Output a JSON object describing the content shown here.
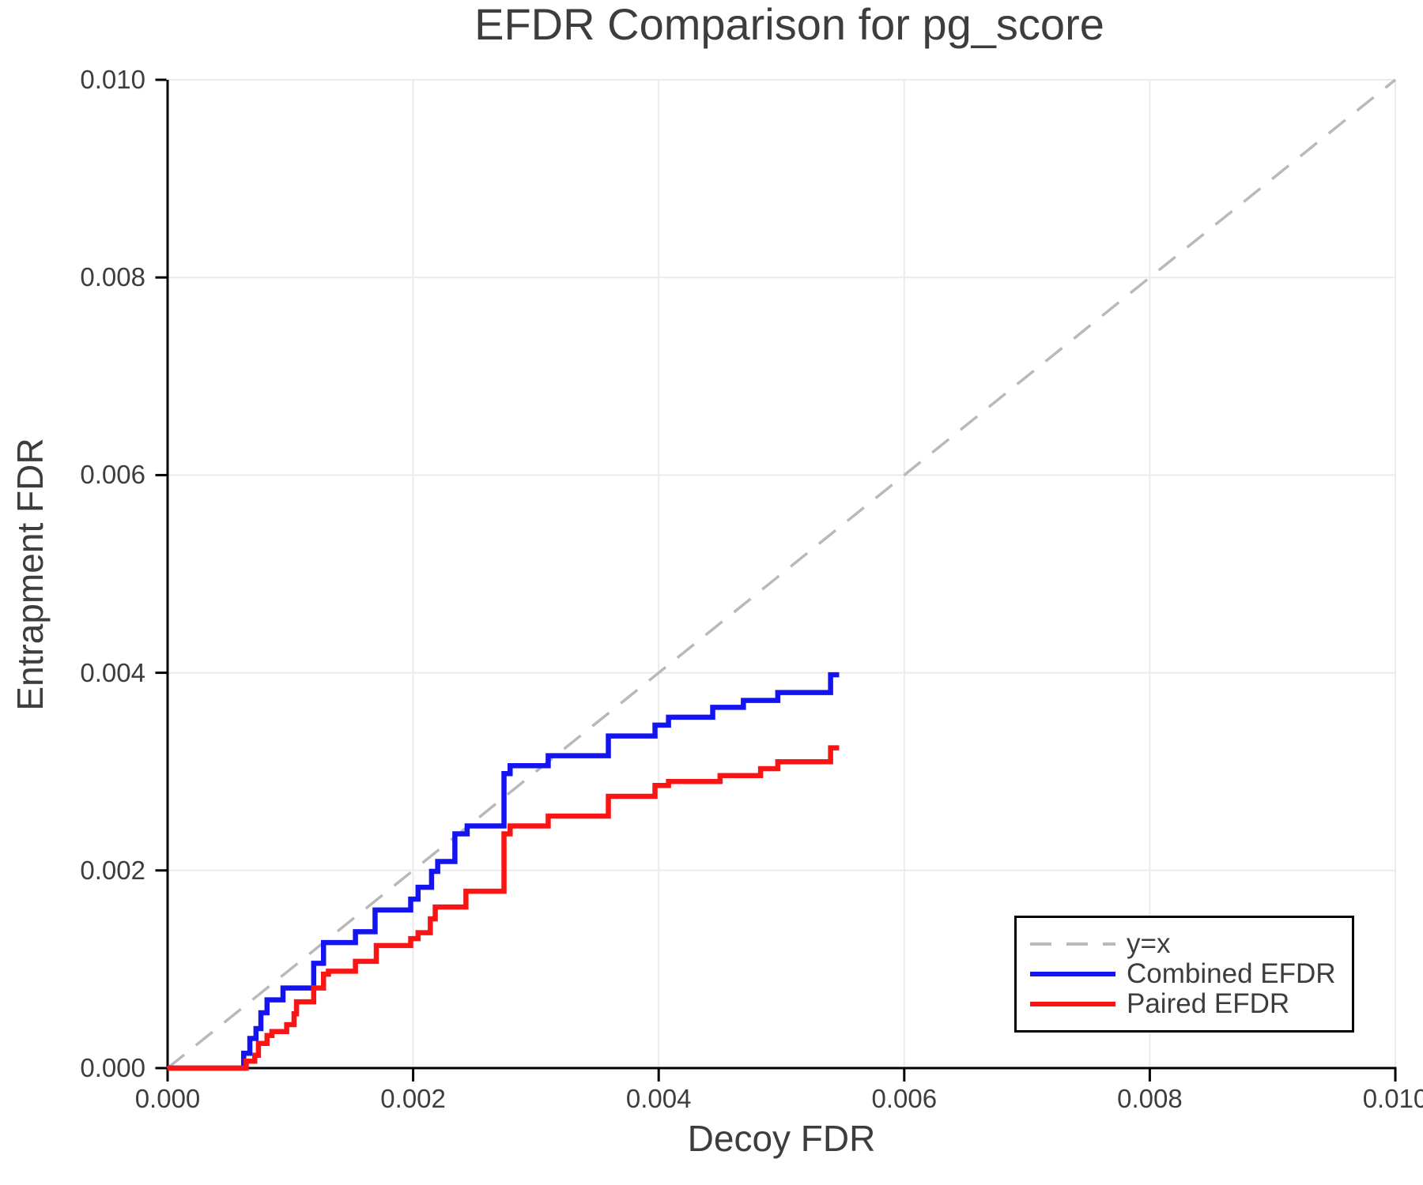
{
  "chart_data": {
    "type": "line",
    "title": "EFDR Comparison for pg_score",
    "xlabel": "Decoy FDR",
    "ylabel": "Entrapment FDR",
    "xlim": [
      0.0,
      0.01
    ],
    "ylim": [
      0.0,
      0.01
    ],
    "grid": true,
    "xticks": {
      "values": [
        0.0,
        0.002,
        0.004,
        0.006,
        0.008,
        0.01
      ],
      "labels": [
        "0.000",
        "0.002",
        "0.004",
        "0.006",
        "0.008",
        "0.010"
      ]
    },
    "yticks": {
      "values": [
        0.0,
        0.002,
        0.004,
        0.006,
        0.008,
        0.01
      ],
      "labels": [
        "0.000",
        "0.002",
        "0.004",
        "0.006",
        "0.008",
        "0.010"
      ]
    },
    "colors": {
      "grid": "#ebebeb",
      "axis": "#000000",
      "text": "#3d3d3d",
      "identity": "#b9b9b9",
      "combined": "#1414f0",
      "paired": "#fa1414"
    },
    "legend": {
      "position": "lower right",
      "entries": [
        {
          "label": "y=x",
          "color": "#b9b9b9",
          "dash": true
        },
        {
          "label": "Combined EFDR",
          "color": "#1414f0",
          "dash": false
        },
        {
          "label": "Paired EFDR",
          "color": "#fa1414",
          "dash": false
        }
      ]
    },
    "series": [
      {
        "id": "identity-line",
        "name": "y=x",
        "type": "line",
        "dash": true,
        "color": "#b9b9b9",
        "points": [
          [
            0.0,
            0.0
          ],
          [
            0.01,
            0.01
          ]
        ]
      },
      {
        "id": "combined-efdr-line",
        "name": "Combined EFDR",
        "type": "step",
        "color": "#1414f0",
        "start": [
          0.0,
          0.0
        ],
        "end_x": 0.00547,
        "steps": [
          [
            0.00062,
            0.00015
          ],
          [
            0.00067,
            0.0003
          ],
          [
            0.00072,
            0.0004
          ],
          [
            0.00076,
            0.00056
          ],
          [
            0.00081,
            0.00069
          ],
          [
            0.00094,
            0.00081
          ],
          [
            0.00119,
            0.00106
          ],
          [
            0.00127,
            0.00127
          ],
          [
            0.00153,
            0.00138
          ],
          [
            0.00169,
            0.0016
          ],
          [
            0.00198,
            0.00171
          ],
          [
            0.00204,
            0.00183
          ],
          [
            0.00215,
            0.00199
          ],
          [
            0.0022,
            0.00209
          ],
          [
            0.00234,
            0.00237
          ],
          [
            0.00244,
            0.00245
          ],
          [
            0.00274,
            0.00298
          ],
          [
            0.00279,
            0.00306
          ],
          [
            0.0031,
            0.00316
          ],
          [
            0.00359,
            0.00336
          ],
          [
            0.00397,
            0.00347
          ],
          [
            0.00408,
            0.00355
          ],
          [
            0.00444,
            0.00365
          ],
          [
            0.00469,
            0.00372
          ],
          [
            0.00497,
            0.0038
          ],
          [
            0.0054,
            0.00398
          ]
        ]
      },
      {
        "id": "paired-efdr-line",
        "name": "Paired EFDR",
        "type": "step",
        "color": "#fa1414",
        "start": [
          0.0,
          0.0
        ],
        "end_x": 0.00547,
        "steps": [
          [
            0.00064,
            7e-05
          ],
          [
            0.00071,
            0.00013
          ],
          [
            0.00074,
            0.00025
          ],
          [
            0.00081,
            0.00033
          ],
          [
            0.00085,
            0.00037
          ],
          [
            0.00097,
            0.00044
          ],
          [
            0.00103,
            0.00055
          ],
          [
            0.00105,
            0.00067
          ],
          [
            0.00119,
            0.00081
          ],
          [
            0.00127,
            0.00095
          ],
          [
            0.00131,
            0.00098
          ],
          [
            0.00153,
            0.00108
          ],
          [
            0.0017,
            0.00124
          ],
          [
            0.00198,
            0.00131
          ],
          [
            0.00204,
            0.00137
          ],
          [
            0.00214,
            0.00151
          ],
          [
            0.00218,
            0.00163
          ],
          [
            0.00243,
            0.00179
          ],
          [
            0.00274,
            0.00237
          ],
          [
            0.00279,
            0.00245
          ],
          [
            0.0031,
            0.00255
          ],
          [
            0.00359,
            0.00275
          ],
          [
            0.00397,
            0.00286
          ],
          [
            0.00408,
            0.0029
          ],
          [
            0.0045,
            0.00296
          ],
          [
            0.00483,
            0.00303
          ],
          [
            0.00497,
            0.0031
          ],
          [
            0.0054,
            0.00324
          ]
        ]
      }
    ]
  }
}
